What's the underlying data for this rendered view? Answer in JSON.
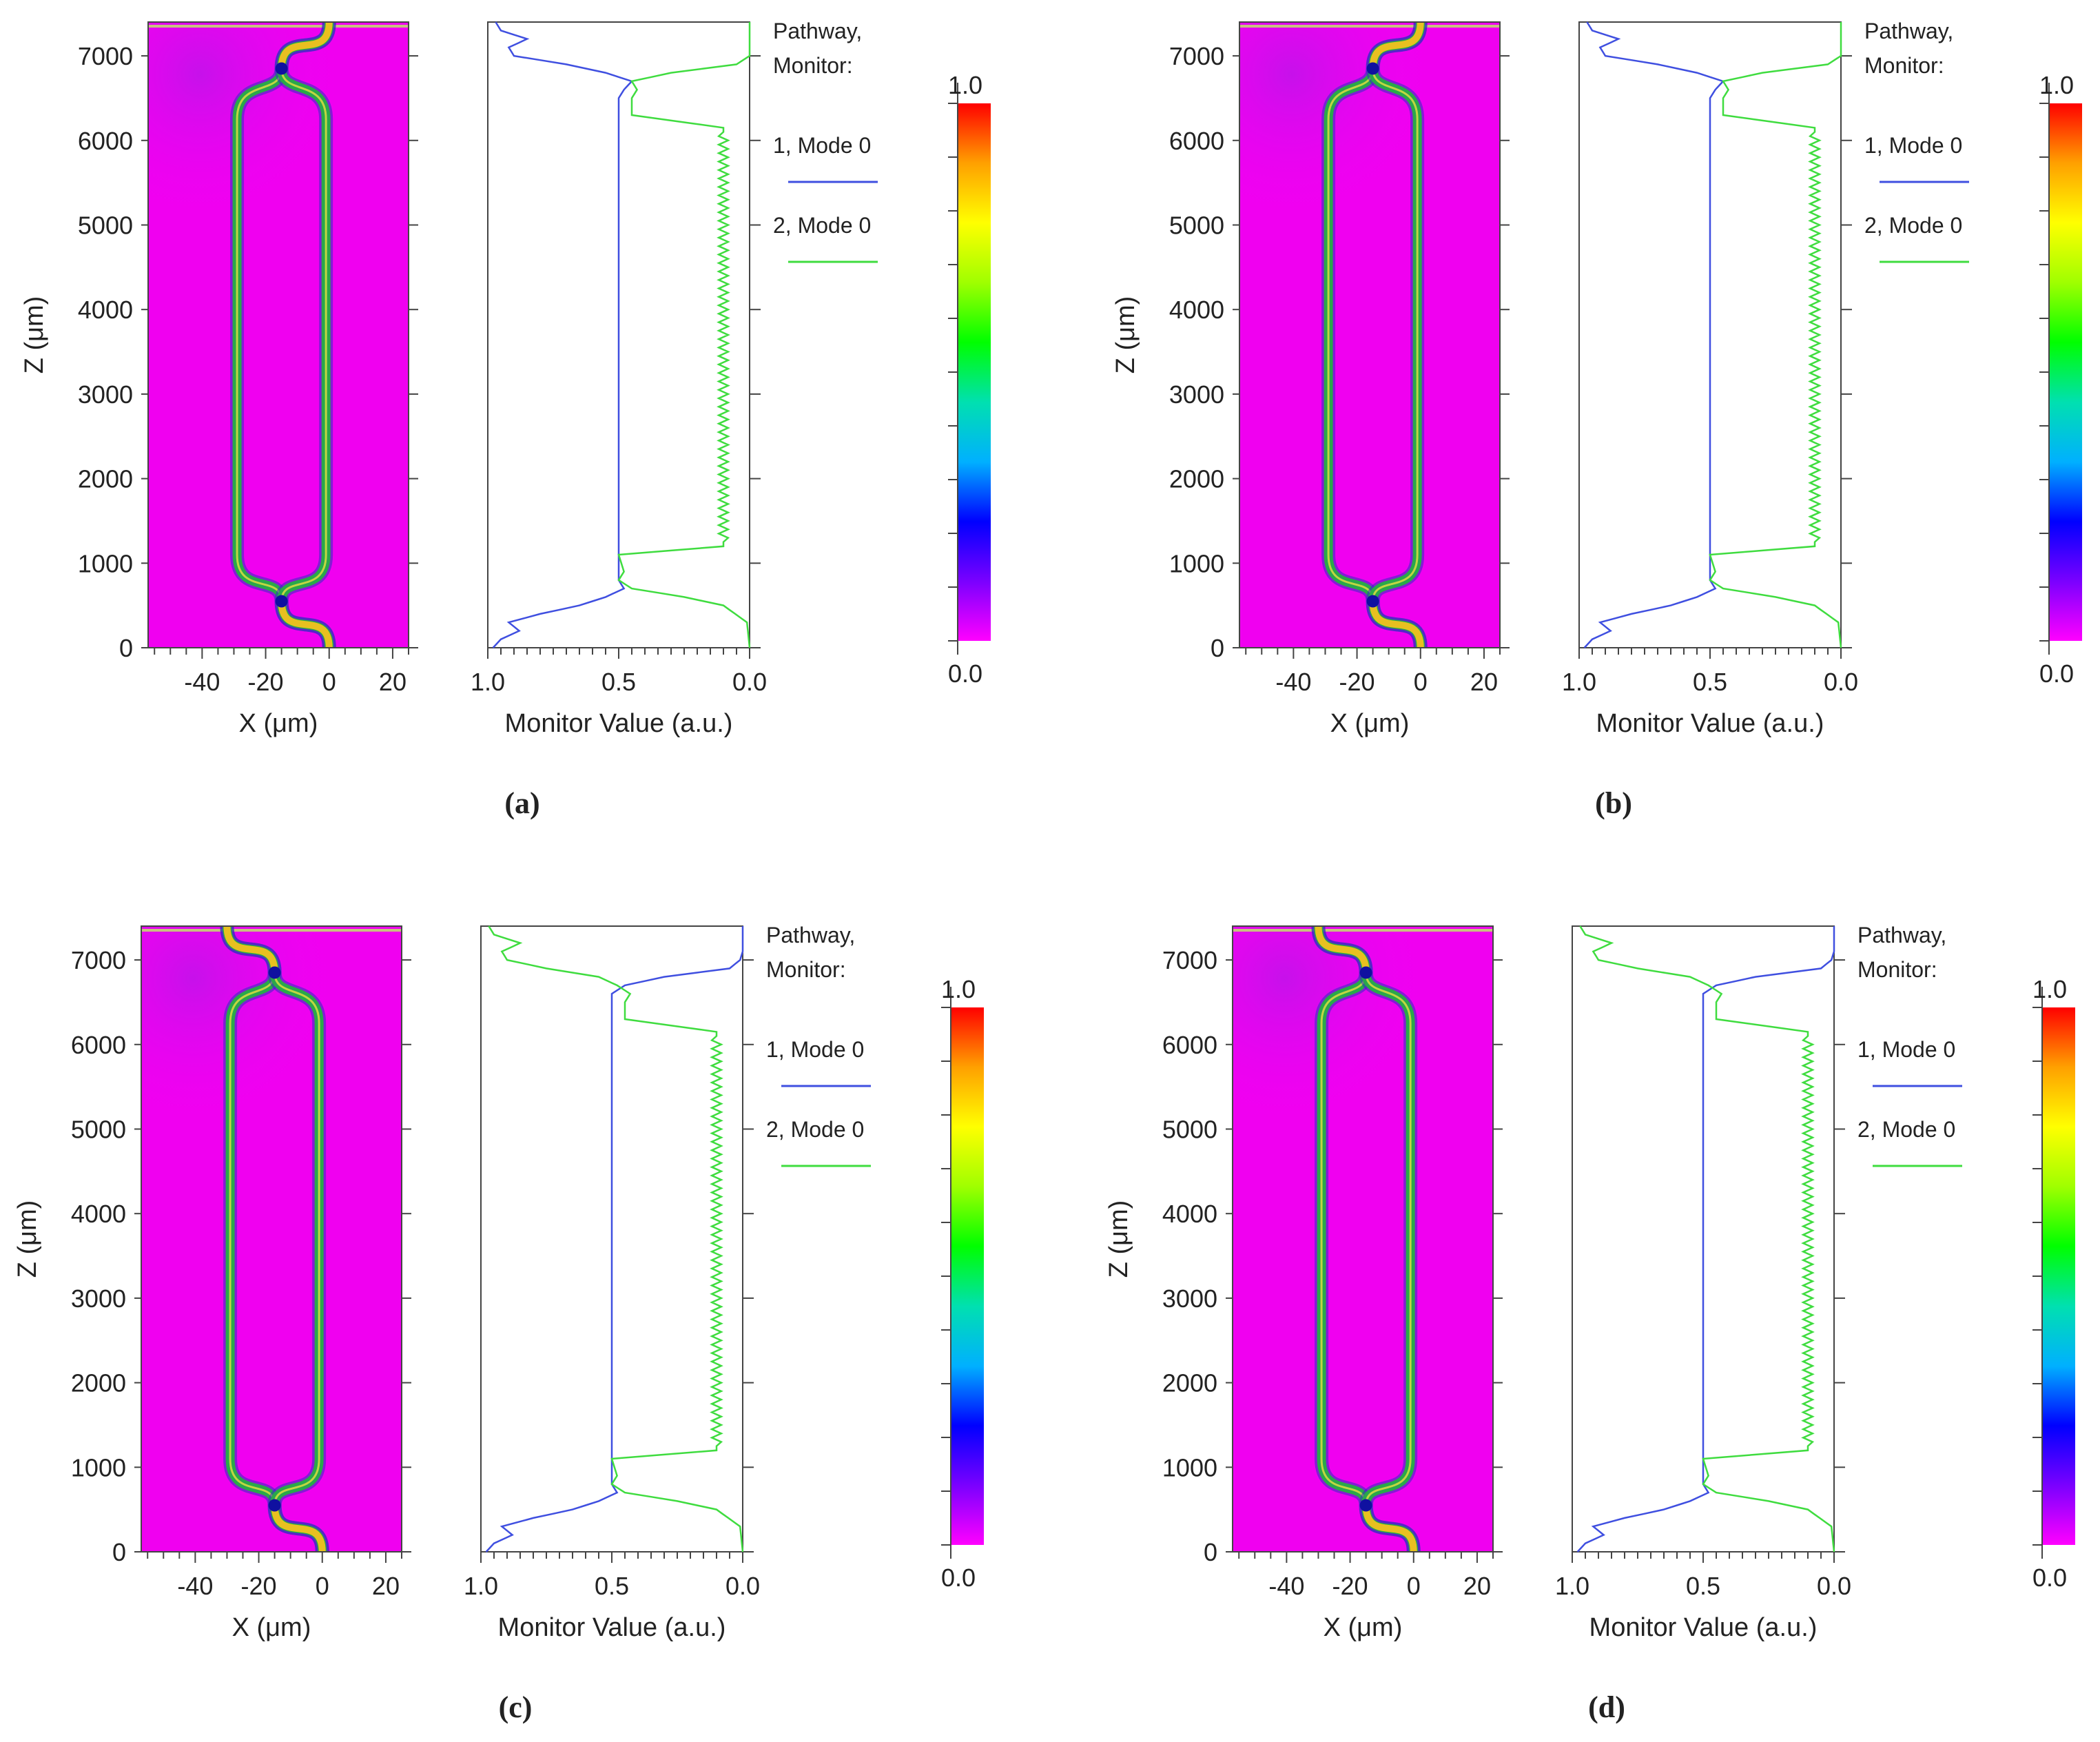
{
  "figure": {
    "panels": [
      {
        "label": "(a)"
      },
      {
        "label": "(b)"
      },
      {
        "label": "(c)"
      },
      {
        "label": "(d)"
      }
    ]
  },
  "colors": {
    "mode1_line": "#3f4fe0",
    "mode2_line": "#3fdc3f",
    "field_background": "#f000f0",
    "waveguide_core": "#2aa84a",
    "axis": "#444444",
    "colorbar_stops": [
      "#ff00ff",
      "#7a00ff",
      "#0000ff",
      "#00b0ff",
      "#00e0b0",
      "#00ff00",
      "#a0ff00",
      "#ffff00",
      "#ffa000",
      "#ff0000"
    ]
  },
  "chart_data": [
    {
      "panel": "(a)",
      "type": "line",
      "field_map": {
        "xlabel": "X (μm)",
        "ylabel": "Z (μm)",
        "xlim": [
          -57,
          25
        ],
        "ylim": [
          0,
          7400
        ],
        "x_ticks": [
          "-40",
          "-20",
          "0",
          "20"
        ],
        "y_ticks": [
          "0",
          "1000",
          "2000",
          "3000",
          "4000",
          "5000",
          "6000",
          "7000"
        ],
        "waveguides": {
          "left_x": -29,
          "right_x": -1,
          "merge_x": -15,
          "input_arm": "right",
          "output_arm": "right"
        }
      },
      "monitor": {
        "xlabel": "Monitor Value (a.u.)",
        "xlim": [
          1.0,
          0.0
        ],
        "x_ticks": [
          "1.0",
          "0.5",
          "0.0"
        ],
        "legend_title": [
          "Pathway,",
          "Monitor:"
        ],
        "series": [
          {
            "name": "1, Mode 0",
            "z": [
              0,
              100,
              200,
              300,
              400,
              500,
              600,
              700,
              800,
              1000,
              1200,
              3000,
              6000,
              6300,
              6500,
              6600,
              6700,
              6800,
              6900,
              7000,
              7100,
              7200,
              7300,
              7400
            ],
            "values": [
              0.98,
              0.95,
              0.88,
              0.92,
              0.8,
              0.65,
              0.55,
              0.48,
              0.5,
              0.5,
              0.5,
              0.5,
              0.5,
              0.5,
              0.5,
              0.48,
              0.45,
              0.55,
              0.7,
              0.9,
              0.92,
              0.85,
              0.95,
              0.97
            ]
          },
          {
            "name": "2, Mode 0",
            "z": [
              0,
              300,
              500,
              600,
              700,
              800,
              900,
              1100,
              1200,
              6150,
              6300,
              6500,
              6600,
              6700,
              6800,
              6900,
              7000,
              7200,
              7400
            ],
            "values": [
              0.0,
              0.01,
              0.1,
              0.25,
              0.45,
              0.5,
              0.48,
              0.5,
              0.1,
              0.1,
              0.45,
              0.45,
              0.43,
              0.45,
              0.3,
              0.05,
              0.0,
              0.0,
              0.0
            ]
          }
        ]
      },
      "colorbar": {
        "min_label": "0.0",
        "max_label": "1.0"
      }
    },
    {
      "panel": "(b)",
      "type": "line",
      "field_map": {
        "xlabel": "X (μm)",
        "ylabel": "Z (μm)",
        "xlim": [
          -57,
          25
        ],
        "ylim": [
          0,
          7400
        ],
        "x_ticks": [
          "-40",
          "-20",
          "0",
          "20"
        ],
        "y_ticks": [
          "0",
          "1000",
          "2000",
          "3000",
          "4000",
          "5000",
          "6000",
          "7000"
        ],
        "waveguides": {
          "left_x": -29,
          "right_x": -1,
          "merge_x": -15,
          "input_arm": "right",
          "output_arm": "right"
        }
      },
      "monitor": {
        "xlabel": "Monitor Value (a.u.)",
        "xlim": [
          1.0,
          0.0
        ],
        "x_ticks": [
          "1.0",
          "0.5",
          "0.0"
        ],
        "legend_title": [
          "Pathway,",
          "Monitor:"
        ],
        "series": [
          {
            "name": "1, Mode 0",
            "z": [
              0,
              100,
              200,
              300,
              400,
              500,
              600,
              700,
              800,
              1000,
              1200,
              3000,
              6000,
              6300,
              6500,
              6600,
              6700,
              6800,
              6900,
              7000,
              7100,
              7200,
              7300,
              7400
            ],
            "values": [
              0.98,
              0.95,
              0.88,
              0.92,
              0.8,
              0.65,
              0.55,
              0.48,
              0.5,
              0.5,
              0.5,
              0.5,
              0.5,
              0.5,
              0.5,
              0.48,
              0.45,
              0.55,
              0.7,
              0.9,
              0.92,
              0.85,
              0.95,
              0.97
            ]
          },
          {
            "name": "2, Mode 0",
            "z": [
              0,
              300,
              500,
              600,
              700,
              800,
              900,
              1100,
              1200,
              6150,
              6300,
              6500,
              6600,
              6700,
              6800,
              6900,
              7000,
              7200,
              7400
            ],
            "values": [
              0.0,
              0.01,
              0.1,
              0.25,
              0.45,
              0.5,
              0.48,
              0.5,
              0.1,
              0.1,
              0.45,
              0.45,
              0.43,
              0.45,
              0.3,
              0.05,
              0.0,
              0.0,
              0.0
            ]
          }
        ]
      },
      "colorbar": {
        "min_label": "0.0",
        "max_label": "1.0"
      }
    },
    {
      "panel": "(c)",
      "type": "line",
      "field_map": {
        "xlabel": "X (μm)",
        "ylabel": "Z (μm)",
        "xlim": [
          -57,
          25
        ],
        "ylim": [
          0,
          7400
        ],
        "x_ticks": [
          "-40",
          "-20",
          "0",
          "20"
        ],
        "y_ticks": [
          "0",
          "1000",
          "2000",
          "3000",
          "4000",
          "5000",
          "6000",
          "7000"
        ],
        "waveguides": {
          "left_x": -29,
          "right_x": -1,
          "merge_x": -15,
          "input_arm": "right",
          "output_arm": "left"
        }
      },
      "monitor": {
        "xlabel": "Monitor Value (a.u.)",
        "xlim": [
          1.0,
          0.0
        ],
        "x_ticks": [
          "1.0",
          "0.5",
          "0.0"
        ],
        "legend_title": [
          "Pathway,",
          "Monitor:"
        ],
        "series": [
          {
            "name": "1, Mode 0",
            "z": [
              0,
              100,
              200,
              300,
              400,
              500,
              600,
              700,
              800,
              1000,
              1200,
              3000,
              6000,
              6300,
              6500,
              6600,
              6700,
              6800,
              6900,
              7000,
              7100,
              7200,
              7400
            ],
            "values": [
              0.98,
              0.95,
              0.88,
              0.92,
              0.8,
              0.65,
              0.55,
              0.48,
              0.5,
              0.5,
              0.5,
              0.5,
              0.5,
              0.5,
              0.5,
              0.5,
              0.45,
              0.3,
              0.05,
              0.01,
              0.0,
              0.0,
              0.0
            ]
          },
          {
            "name": "2, Mode 0",
            "z": [
              0,
              300,
              500,
              600,
              700,
              800,
              900,
              1100,
              1200,
              6150,
              6300,
              6500,
              6600,
              6700,
              6800,
              6900,
              7000,
              7100,
              7200,
              7300,
              7400
            ],
            "values": [
              0.0,
              0.01,
              0.1,
              0.25,
              0.45,
              0.5,
              0.48,
              0.5,
              0.1,
              0.1,
              0.45,
              0.45,
              0.43,
              0.48,
              0.55,
              0.75,
              0.9,
              0.92,
              0.85,
              0.95,
              0.97
            ]
          }
        ]
      },
      "colorbar": {
        "min_label": "0.0",
        "max_label": "1.0"
      }
    },
    {
      "panel": "(d)",
      "type": "line",
      "field_map": {
        "xlabel": "X (μm)",
        "ylabel": "Z (μm)",
        "xlim": [
          -57,
          25
        ],
        "ylim": [
          0,
          7400
        ],
        "x_ticks": [
          "-40",
          "-20",
          "0",
          "20"
        ],
        "y_ticks": [
          "0",
          "1000",
          "2000",
          "3000",
          "4000",
          "5000",
          "6000",
          "7000"
        ],
        "waveguides": {
          "left_x": -29,
          "right_x": -1,
          "merge_x": -15,
          "input_arm": "right",
          "output_arm": "left"
        }
      },
      "monitor": {
        "xlabel": "Monitor Value (a.u.)",
        "xlim": [
          1.0,
          0.0
        ],
        "x_ticks": [
          "1.0",
          "0.5",
          "0.0"
        ],
        "legend_title": [
          "Pathway,",
          "Monitor:"
        ],
        "series": [
          {
            "name": "1, Mode 0",
            "z": [
              0,
              100,
              200,
              300,
              400,
              500,
              600,
              700,
              800,
              1000,
              1200,
              3000,
              6000,
              6300,
              6500,
              6600,
              6700,
              6800,
              6900,
              7000,
              7100,
              7200,
              7400
            ],
            "values": [
              0.98,
              0.95,
              0.88,
              0.92,
              0.8,
              0.65,
              0.55,
              0.48,
              0.5,
              0.5,
              0.5,
              0.5,
              0.5,
              0.5,
              0.5,
              0.5,
              0.45,
              0.3,
              0.05,
              0.01,
              0.0,
              0.0,
              0.0
            ]
          },
          {
            "name": "2, Mode 0",
            "z": [
              0,
              300,
              500,
              600,
              700,
              800,
              900,
              1100,
              1200,
              6150,
              6300,
              6500,
              6600,
              6700,
              6800,
              6900,
              7000,
              7100,
              7200,
              7300,
              7400
            ],
            "values": [
              0.0,
              0.01,
              0.1,
              0.25,
              0.45,
              0.5,
              0.48,
              0.5,
              0.1,
              0.1,
              0.45,
              0.45,
              0.43,
              0.48,
              0.55,
              0.75,
              0.9,
              0.92,
              0.85,
              0.95,
              0.97
            ]
          }
        ]
      },
      "colorbar": {
        "min_label": "0.0",
        "max_label": "1.0"
      }
    }
  ]
}
